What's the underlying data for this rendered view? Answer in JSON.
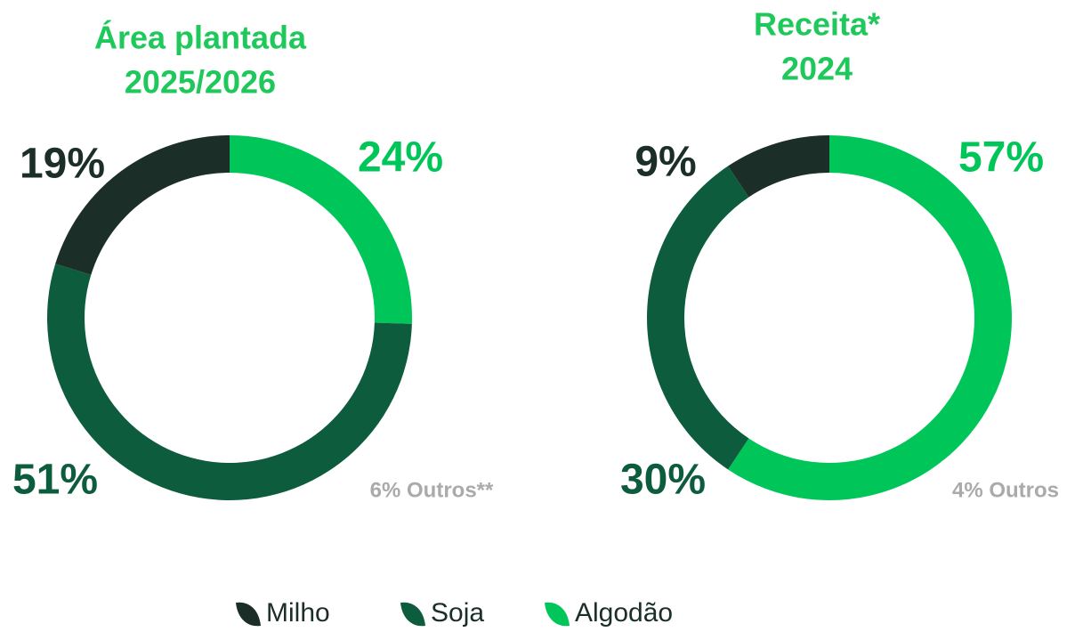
{
  "chart_data": [
    {
      "type": "pie",
      "title_lines": [
        "Área plantada",
        "2025/2026"
      ],
      "categories": [
        "Milho",
        "Soja",
        "Algodão"
      ],
      "values": [
        19,
        51,
        24
      ],
      "value_labels": [
        "19%",
        "51%",
        "24%"
      ],
      "colors": [
        "#1b2e28",
        "#0e5c3e",
        "#00c65a"
      ],
      "others_label": "6% Outros**"
    },
    {
      "type": "pie",
      "title_lines": [
        "Receita*",
        "2024"
      ],
      "categories": [
        "Milho",
        "Soja",
        "Algodão"
      ],
      "values": [
        9,
        30,
        57
      ],
      "value_labels": [
        "9%",
        "30%",
        "57%"
      ],
      "colors": [
        "#1b2e28",
        "#0e5c3e",
        "#00c65a"
      ],
      "others_label": "4% Outros"
    }
  ]
}
